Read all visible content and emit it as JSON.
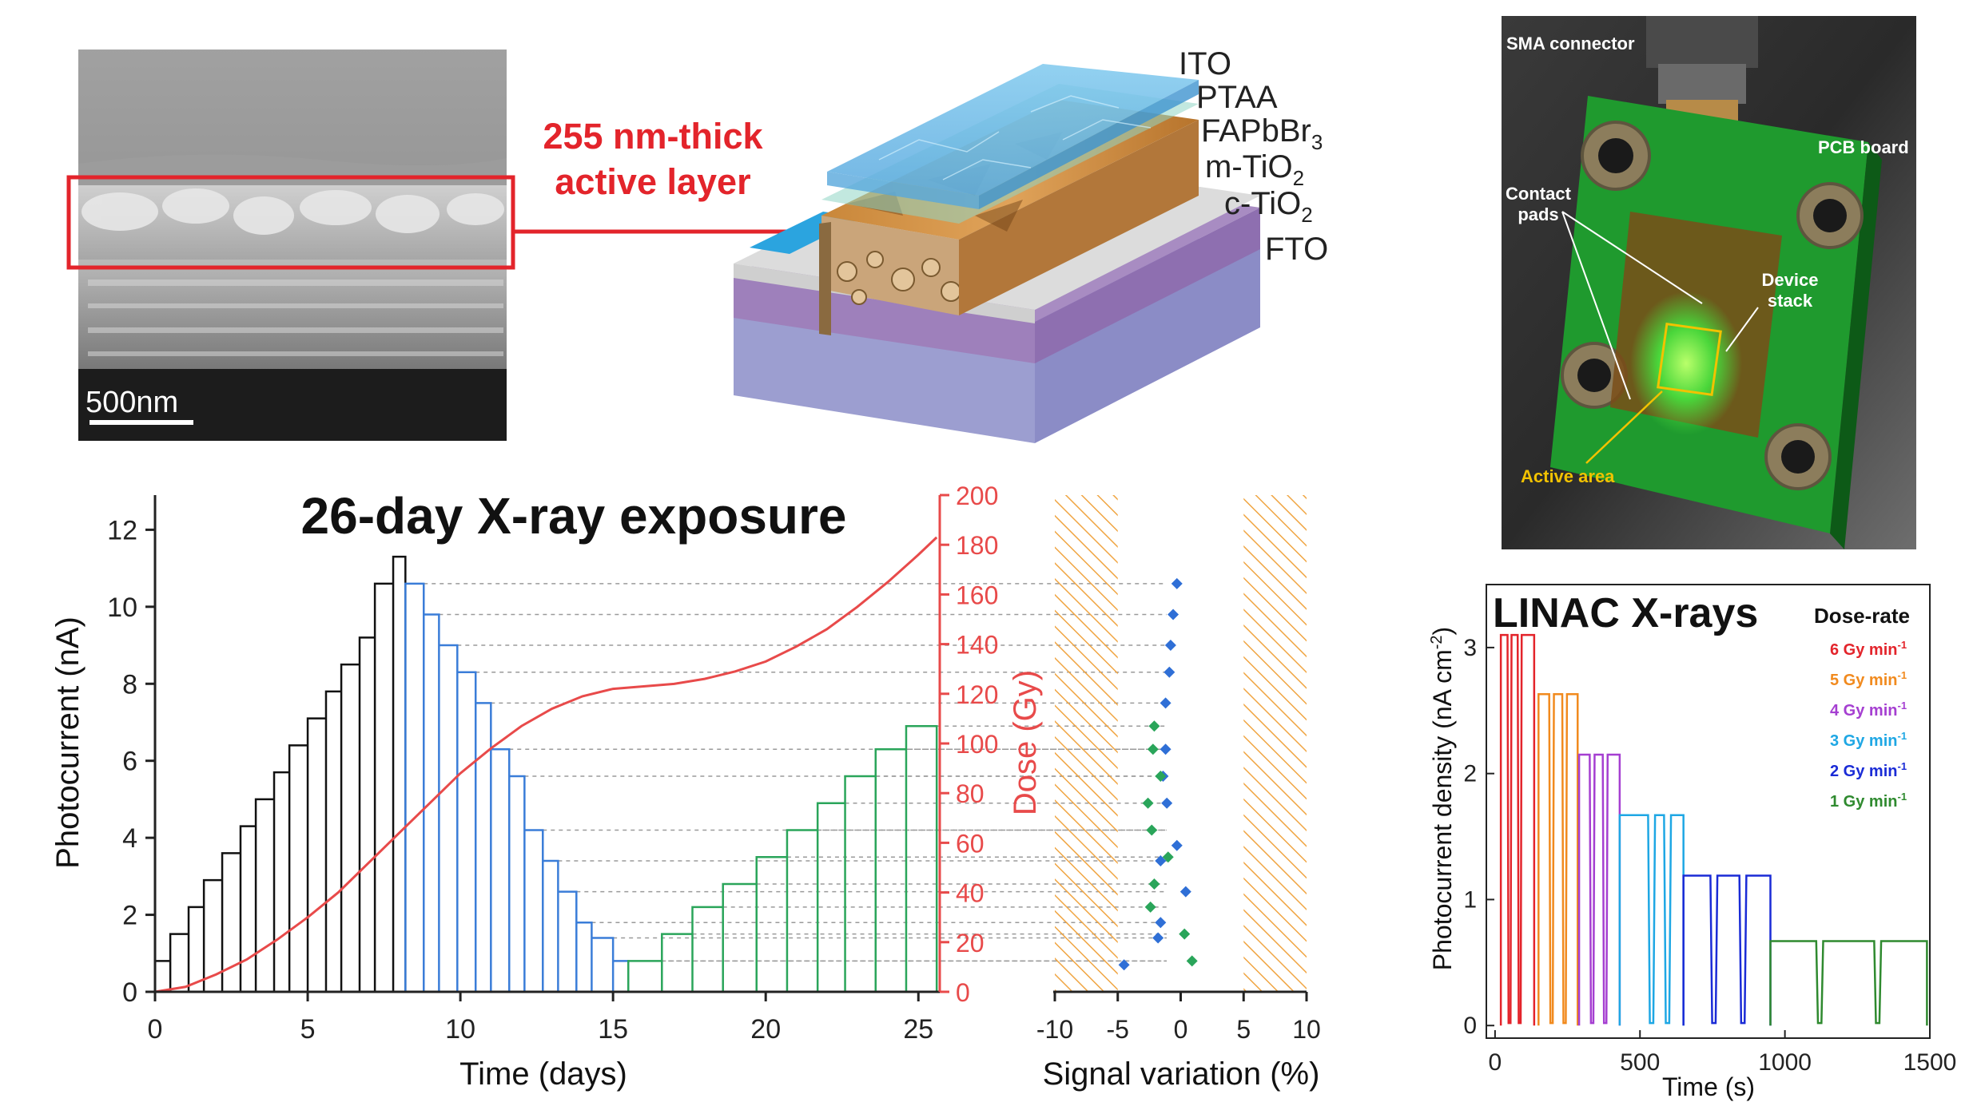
{
  "sem": {
    "scale": "500nm"
  },
  "highlight": {
    "line1": "255 nm-thick",
    "line2": "active layer"
  },
  "stack": {
    "layers": [
      {
        "name": "ITO"
      },
      {
        "name": "PTAA"
      },
      {
        "name": "FAPbBr",
        "sub": "3"
      },
      {
        "name": "m-TiO",
        "sub": "2"
      },
      {
        "name": "c-TiO",
        "sub": "2"
      },
      {
        "name": "FTO"
      }
    ]
  },
  "photo": {
    "labels": {
      "sma": "SMA connector",
      "pcb": "PCB board",
      "contact1": "Contact",
      "contact2": "pads",
      "device1": "Device",
      "device2": "stack",
      "active": "Active area"
    },
    "colors": {
      "board": "#1f9a2e",
      "active": "#f2c200"
    }
  },
  "chart_data": [
    {
      "type": "line",
      "title": "26-day X-ray exposure",
      "xlabel": "Time (days)",
      "ylabel": "Photocurrent (nA)",
      "y2label": "Dose (Gy)",
      "xlim": [
        0,
        25.7
      ],
      "ylim": [
        0,
        12.9
      ],
      "y2lim": [
        0,
        200
      ],
      "xticks": [
        0,
        5,
        10,
        15,
        20,
        25
      ],
      "yticks": [
        0,
        2,
        4,
        6,
        8,
        10,
        12
      ],
      "y2ticks": [
        0,
        20,
        40,
        60,
        80,
        100,
        120,
        140,
        160,
        180,
        200
      ],
      "series": [
        {
          "color": "#111111",
          "steps": [
            [
              0,
              0.5,
              0.8
            ],
            [
              0.5,
              1.1,
              1.5
            ],
            [
              1.1,
              1.6,
              2.2
            ],
            [
              1.6,
              2.2,
              2.9
            ],
            [
              2.2,
              2.8,
              3.6
            ],
            [
              2.8,
              3.3,
              4.3
            ],
            [
              3.3,
              3.9,
              5.0
            ],
            [
              3.9,
              4.4,
              5.7
            ],
            [
              4.4,
              5.0,
              6.4
            ],
            [
              5.0,
              5.6,
              7.1
            ],
            [
              5.6,
              6.1,
              7.8
            ],
            [
              6.1,
              6.7,
              8.5
            ],
            [
              6.7,
              7.2,
              9.2
            ],
            [
              7.2,
              7.8,
              10.6
            ],
            [
              7.8,
              8.2,
              11.3
            ]
          ]
        },
        {
          "color": "#3a7dd8",
          "steps": [
            [
              8.2,
              8.8,
              10.6
            ],
            [
              8.8,
              9.3,
              9.8
            ],
            [
              9.3,
              9.9,
              9.0
            ],
            [
              9.9,
              10.5,
              8.3
            ],
            [
              10.5,
              11.0,
              7.5
            ],
            [
              11.0,
              11.6,
              6.3
            ],
            [
              11.6,
              12.1,
              5.6
            ],
            [
              12.1,
              12.7,
              4.2
            ],
            [
              12.7,
              13.2,
              3.4
            ],
            [
              13.2,
              13.8,
              2.6
            ],
            [
              13.8,
              14.3,
              1.8
            ],
            [
              14.3,
              15.0,
              1.4
            ],
            [
              15.0,
              15.5,
              0.8
            ]
          ]
        },
        {
          "color": "#2aa55a",
          "steps": [
            [
              15.5,
              16.6,
              0.8
            ],
            [
              16.6,
              17.6,
              1.5
            ],
            [
              17.6,
              18.6,
              2.2
            ],
            [
              18.6,
              19.7,
              2.8
            ],
            [
              19.7,
              20.7,
              3.5
            ],
            [
              20.7,
              21.7,
              4.2
            ],
            [
              21.7,
              22.6,
              4.9
            ],
            [
              22.6,
              23.6,
              5.6
            ],
            [
              23.6,
              24.6,
              6.3
            ],
            [
              24.6,
              25.6,
              6.9
            ]
          ]
        },
        {
          "name": "Dose",
          "color": "#e84a4a",
          "axis": "y2",
          "x": [
            0,
            1,
            2,
            3,
            4,
            5,
            6,
            7,
            8,
            9,
            10,
            11,
            12,
            13,
            14,
            15,
            16,
            17,
            18,
            19,
            20,
            21,
            22,
            23,
            24,
            25,
            25.6
          ],
          "y": [
            0,
            2,
            7,
            13,
            21,
            30,
            40,
            52,
            64,
            76,
            88,
            98,
            107,
            114,
            119,
            122,
            123,
            124,
            126,
            129,
            133,
            139,
            146,
            155,
            165,
            176,
            183
          ]
        }
      ]
    },
    {
      "type": "scatter",
      "xlabel": "Signal variation (%)",
      "xlim": [
        -10,
        10
      ],
      "xticks": [
        -10,
        -5,
        0,
        5,
        10
      ],
      "hatched": [
        [
          -10,
          -5
        ],
        [
          5,
          10
        ]
      ],
      "series": [
        {
          "color": "#2f6fd6",
          "points": [
            [
              -0.3,
              10.6
            ],
            [
              -0.6,
              9.8
            ],
            [
              -0.8,
              9.0
            ],
            [
              -0.9,
              8.3
            ],
            [
              -1.2,
              7.5
            ],
            [
              -1.2,
              6.3
            ],
            [
              -1.4,
              5.6
            ],
            [
              -1.1,
              4.9
            ],
            [
              -0.3,
              3.8
            ],
            [
              -1.6,
              3.4
            ],
            [
              0.4,
              2.6
            ],
            [
              -1.6,
              1.8
            ],
            [
              -1.8,
              1.4
            ],
            [
              -4.5,
              0.7
            ]
          ]
        },
        {
          "color": "#2aa55a",
          "points": [
            [
              -2.1,
              6.9
            ],
            [
              -2.2,
              6.3
            ],
            [
              -1.6,
              5.6
            ],
            [
              -2.6,
              4.9
            ],
            [
              -2.3,
              4.2
            ],
            [
              -1.0,
              3.5
            ],
            [
              -2.1,
              2.8
            ],
            [
              -2.4,
              2.2
            ],
            [
              0.3,
              1.5
            ],
            [
              0.9,
              0.8
            ]
          ]
        }
      ]
    },
    {
      "type": "line",
      "title": "LINAC X-rays",
      "xlabel": "Time (s)",
      "ylabel": "Photocurrent density (nA cm",
      "ylabel_sup": "-2",
      "ylabel_end": ")",
      "xlim": [
        -30,
        1500
      ],
      "ylim": [
        -0.1,
        3.5
      ],
      "xticks": [
        0,
        500,
        1000,
        1500
      ],
      "yticks": [
        0,
        1,
        2,
        3
      ],
      "legend": {
        "title": "Dose-rate",
        "position": "top-right"
      },
      "series": [
        {
          "name": "6 Gy min",
          "sup": "-1",
          "color": "#e3242b",
          "start": 20,
          "end": 135,
          "level": 3.1,
          "dips": [
            50,
            85
          ]
        },
        {
          "name": "5 Gy min",
          "sup": "-1",
          "color": "#f18a1e",
          "start": 150,
          "end": 285,
          "level": 2.63,
          "dips": [
            195,
            240
          ]
        },
        {
          "name": "4 Gy min",
          "sup": "-1",
          "color": "#a53fd1",
          "start": 290,
          "end": 430,
          "level": 2.15,
          "dips": [
            335,
            380
          ]
        },
        {
          "name": "3 Gy min",
          "sup": "-1",
          "color": "#1ea7e4",
          "start": 430,
          "end": 650,
          "level": 1.67,
          "dips": [
            540,
            595
          ]
        },
        {
          "name": "2 Gy min",
          "sup": "-1",
          "color": "#1a2bd6",
          "start": 650,
          "end": 950,
          "level": 1.19,
          "dips": [
            755,
            855
          ]
        },
        {
          "name": "1 Gy min",
          "sup": "-1",
          "color": "#2f8a2f",
          "start": 950,
          "end": 1490,
          "level": 0.67,
          "dips": [
            1120,
            1320
          ]
        }
      ]
    }
  ]
}
